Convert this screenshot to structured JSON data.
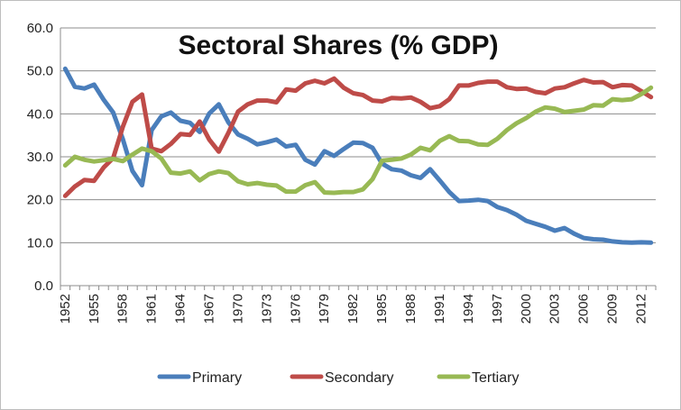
{
  "chart_data": {
    "type": "line",
    "title": "Sectoral Shares (% GDP)",
    "xlabel": "",
    "ylabel": "",
    "ylim": [
      0,
      60
    ],
    "yticks": [
      "0.0",
      "10.0",
      "20.0",
      "30.0",
      "40.0",
      "50.0",
      "60.0"
    ],
    "grid": "horizontal",
    "legend_position": "bottom",
    "x_tick_labels": [
      "1952",
      "1955",
      "1958",
      "1961",
      "1964",
      "1967",
      "1970",
      "1973",
      "1976",
      "1979",
      "1982",
      "1985",
      "1988",
      "1991",
      "1994",
      "1997",
      "2000",
      "2003",
      "2006",
      "2009",
      "2012"
    ],
    "x": [
      1952,
      1953,
      1954,
      1955,
      1956,
      1957,
      1958,
      1959,
      1960,
      1961,
      1962,
      1963,
      1964,
      1965,
      1966,
      1967,
      1968,
      1969,
      1970,
      1971,
      1972,
      1973,
      1974,
      1975,
      1976,
      1977,
      1978,
      1979,
      1980,
      1981,
      1982,
      1983,
      1984,
      1985,
      1986,
      1987,
      1988,
      1989,
      1990,
      1991,
      1992,
      1993,
      1994,
      1995,
      1996,
      1997,
      1998,
      1999,
      2000,
      2001,
      2002,
      2003,
      2004,
      2005,
      2006,
      2007,
      2008,
      2009,
      2010,
      2011,
      2012,
      2013
    ],
    "series": [
      {
        "name": "Primary",
        "color": "#4a7ebb",
        "values": [
          50.5,
          46.3,
          45.9,
          46.8,
          43.3,
          40.3,
          34.1,
          26.7,
          23.4,
          36.2,
          39.4,
          40.3,
          38.4,
          37.9,
          35.8,
          40.1,
          42.2,
          38.0,
          35.2,
          34.2,
          32.9,
          33.4,
          34.0,
          32.4,
          32.8,
          29.3,
          28.2,
          31.3,
          30.2,
          31.8,
          33.3,
          33.2,
          32.1,
          28.4,
          27.1,
          26.8,
          25.7,
          25.1,
          27.1,
          24.5,
          21.8,
          19.7,
          19.8,
          20.0,
          19.7,
          18.3,
          17.6,
          16.5,
          15.1,
          14.4,
          13.7,
          12.8,
          13.4,
          12.1,
          11.1,
          10.8,
          10.7,
          10.3,
          10.1,
          10.0,
          10.1,
          10.0
        ]
      },
      {
        "name": "Secondary",
        "color": "#be4b48",
        "values": [
          20.9,
          23.1,
          24.6,
          24.4,
          27.5,
          29.7,
          37.0,
          42.8,
          44.5,
          31.9,
          31.3,
          33.0,
          35.3,
          35.1,
          38.2,
          34.0,
          31.2,
          35.6,
          40.5,
          42.2,
          43.1,
          43.1,
          42.7,
          45.7,
          45.4,
          47.1,
          47.7,
          47.1,
          48.2,
          46.1,
          44.8,
          44.4,
          43.1,
          42.9,
          43.7,
          43.6,
          43.8,
          42.8,
          41.3,
          41.8,
          43.4,
          46.6,
          46.6,
          47.2,
          47.5,
          47.5,
          46.2,
          45.8,
          45.9,
          45.1,
          44.8,
          45.9,
          46.2,
          47.1,
          47.9,
          47.3,
          47.4,
          46.2,
          46.7,
          46.6,
          45.3,
          43.9
        ]
      },
      {
        "name": "Tertiary",
        "color": "#98b954",
        "values": [
          28.0,
          30.0,
          29.3,
          28.9,
          29.2,
          29.5,
          29.0,
          30.5,
          31.9,
          31.3,
          29.6,
          26.3,
          26.1,
          26.6,
          24.5,
          26.0,
          26.6,
          26.2,
          24.3,
          23.6,
          23.9,
          23.5,
          23.3,
          21.9,
          21.9,
          23.4,
          24.1,
          21.7,
          21.6,
          21.8,
          21.8,
          22.4,
          24.8,
          29.1,
          29.3,
          29.6,
          30.5,
          32.1,
          31.5,
          33.7,
          34.8,
          33.7,
          33.6,
          32.9,
          32.8,
          34.2,
          36.2,
          37.8,
          39.0,
          40.5,
          41.5,
          41.2,
          40.4,
          40.7,
          41.0,
          42.0,
          41.9,
          43.4,
          43.2,
          43.4,
          44.6,
          46.1
        ]
      }
    ]
  }
}
